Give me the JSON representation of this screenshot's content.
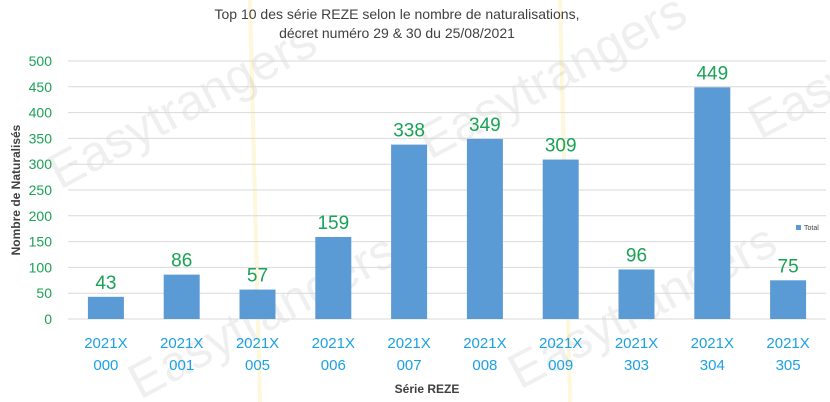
{
  "colors": {
    "bar": "#5b9bd5",
    "data_label": "#1aa256",
    "ytick": "#1aa256",
    "xtick": "#1ba1e2",
    "grid": "#d9d9d9",
    "watermark_stripe": "#fdf3c4"
  },
  "watermark": {
    "text": "Easytrangers"
  },
  "chart_data": {
    "type": "bar",
    "title": "Top 10 des série REZE selon le nombre de naturalisations,",
    "subtitle": "décret numéro 29 & 30 du 25/08/2021",
    "xlabel": "Série REZE",
    "ylabel": "Nombre de Naturalisés",
    "ylim": [
      0,
      500
    ],
    "yticks": [
      0,
      50,
      100,
      150,
      200,
      250,
      300,
      350,
      400,
      450,
      500
    ],
    "grid": true,
    "legend_position": "right",
    "categories": [
      [
        "2021X",
        "000"
      ],
      [
        "2021X",
        "001"
      ],
      [
        "2021X",
        "005"
      ],
      [
        "2021X",
        "006"
      ],
      [
        "2021X",
        "007"
      ],
      [
        "2021X",
        "008"
      ],
      [
        "2021X",
        "009"
      ],
      [
        "2021X",
        "303"
      ],
      [
        "2021X",
        "304"
      ],
      [
        "2021X",
        "305"
      ]
    ],
    "series": [
      {
        "name": "Total",
        "values": [
          43,
          86,
          57,
          159,
          338,
          349,
          309,
          96,
          449,
          75
        ]
      }
    ]
  }
}
